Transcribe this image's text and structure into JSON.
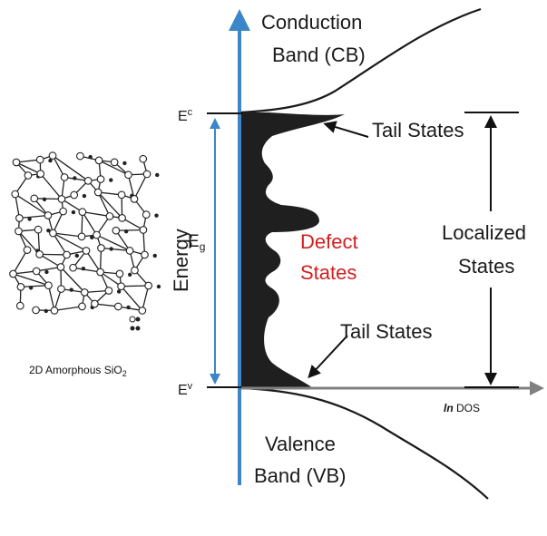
{
  "labels": {
    "conduction_line1": "Conduction",
    "conduction_line2": "Band (CB)",
    "valence_line1": "Valence",
    "valence_line2": "Band (VB)",
    "ec_main": "E",
    "ec_sub": "c",
    "ev_main": "E",
    "ev_sub": "v",
    "eg_main": "E",
    "eg_sub": "g",
    "energy_axis": "Energy",
    "tail_states_top": "Tail States",
    "tail_states_bottom": "Tail States",
    "defect_line1": "Defect",
    "defect_line2": "States",
    "localized_line1": "Localized",
    "localized_line2": "States",
    "dos_italic": "ln",
    "dos_rest": " DOS",
    "material_main": "2D Amorphous SiO",
    "material_sub": "2"
  },
  "colors": {
    "energy_axis": "#3a86c8",
    "dos_axis": "#808080",
    "defect_text": "#d21f1f",
    "fill": "#1f1f1f"
  }
}
